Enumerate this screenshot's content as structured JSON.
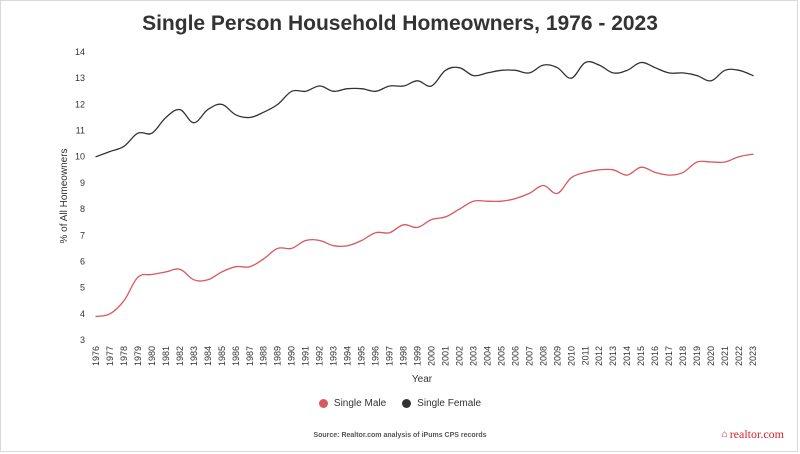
{
  "chart_data": {
    "type": "line",
    "title": "Single Person Household Homeowners, 1976 - 2023",
    "xlabel": "Year",
    "ylabel": "% of All Homeowners",
    "ylim": [
      3,
      14
    ],
    "yticks": [
      3,
      4,
      5,
      6,
      7,
      8,
      9,
      10,
      11,
      12,
      13,
      14
    ],
    "grid": false,
    "legend_position": "bottom",
    "x": [
      "1976",
      "1977",
      "1978",
      "1979",
      "1980",
      "1981",
      "1982",
      "1983",
      "1984",
      "1985",
      "1986",
      "1987",
      "1988",
      "1989",
      "1990",
      "1991",
      "1992",
      "1993",
      "1994",
      "1995",
      "1996",
      "1997",
      "1998",
      "1999",
      "2000",
      "2001",
      "2002",
      "2003",
      "2004",
      "2005",
      "2006",
      "2007",
      "2008",
      "2009",
      "2010",
      "2011",
      "2012",
      "2013",
      "2014",
      "2015",
      "2016",
      "2017",
      "2018",
      "2019",
      "2020",
      "2021",
      "2022",
      "2023"
    ],
    "series": [
      {
        "name": "Single Male",
        "color": "#d9575f",
        "values": [
          3.9,
          4.0,
          4.5,
          5.4,
          5.5,
          5.6,
          5.7,
          5.3,
          5.3,
          5.6,
          5.8,
          5.8,
          6.1,
          6.5,
          6.5,
          6.8,
          6.8,
          6.6,
          6.6,
          6.8,
          7.1,
          7.1,
          7.4,
          7.3,
          7.6,
          7.7,
          8.0,
          8.3,
          8.3,
          8.3,
          8.4,
          8.6,
          8.9,
          8.6,
          9.2,
          9.4,
          9.5,
          9.5,
          9.3,
          9.6,
          9.4,
          9.3,
          9.4,
          9.8,
          9.8,
          9.8,
          10.0,
          10.1
        ]
      },
      {
        "name": "Single Female",
        "color": "#333333",
        "values": [
          10.0,
          10.2,
          10.4,
          10.9,
          10.9,
          11.5,
          11.8,
          11.3,
          11.8,
          12.0,
          11.6,
          11.5,
          11.7,
          12.0,
          12.5,
          12.5,
          12.7,
          12.5,
          12.6,
          12.6,
          12.5,
          12.7,
          12.7,
          12.9,
          12.7,
          13.3,
          13.4,
          13.1,
          13.2,
          13.3,
          13.3,
          13.2,
          13.5,
          13.4,
          13.0,
          13.6,
          13.5,
          13.2,
          13.3,
          13.6,
          13.4,
          13.2,
          13.2,
          13.1,
          12.9,
          13.3,
          13.3,
          13.1
        ]
      }
    ]
  },
  "source": "Source: Realtor.com analysis of iPums CPS records",
  "brand": {
    "mark": "⌂",
    "name": "realtor.com"
  }
}
